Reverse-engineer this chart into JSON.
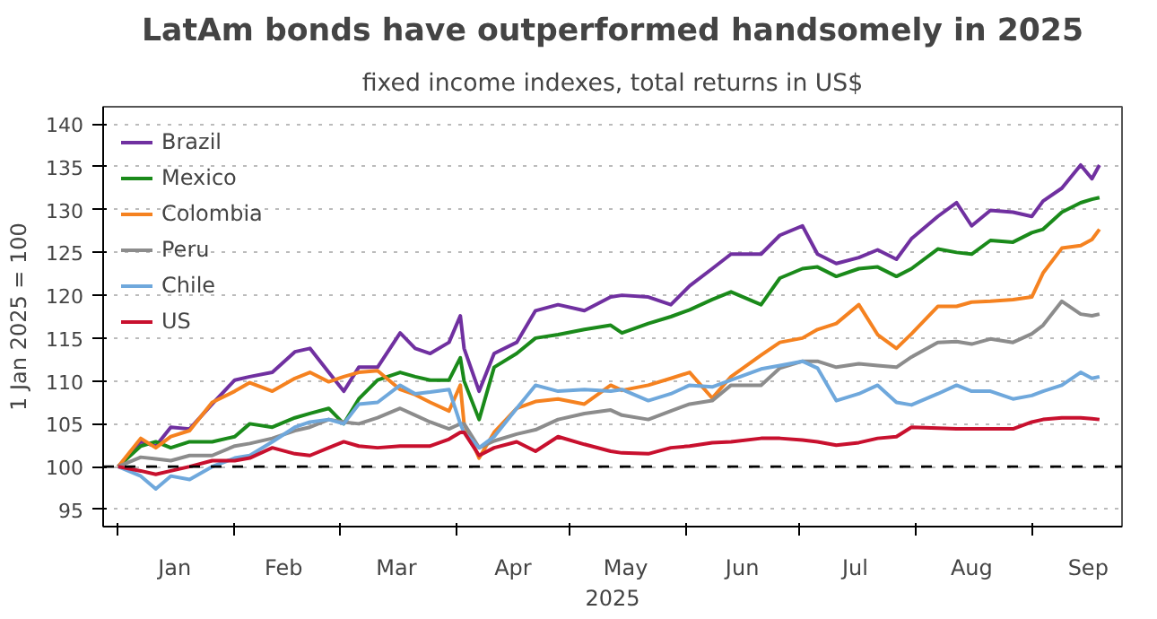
{
  "chart_data": {
    "type": "line",
    "title": "LatAm bonds have outperformed handsomely in 2025",
    "subtitle": "fixed income indexes, total returns in US$",
    "xlabel": "2025",
    "ylabel": "1 Jan 2025 = 100",
    "x": [
      "2025-01-01",
      "2025-01-07",
      "2025-01-11",
      "2025-01-15",
      "2025-01-20",
      "2025-01-26",
      "2025-02-01",
      "2025-02-05",
      "2025-02-11",
      "2025-02-17",
      "2025-02-21",
      "2025-02-26",
      "2025-03-02",
      "2025-03-06",
      "2025-03-11",
      "2025-03-17",
      "2025-03-21",
      "2025-03-25",
      "2025-03-30",
      "2025-04-02",
      "2025-04-03",
      "2025-04-07",
      "2025-04-11",
      "2025-04-17",
      "2025-04-22",
      "2025-04-28",
      "2025-05-05",
      "2025-05-12",
      "2025-05-15",
      "2025-05-22",
      "2025-05-28",
      "2025-06-02",
      "2025-06-08",
      "2025-06-13",
      "2025-06-21",
      "2025-06-26",
      "2025-07-02",
      "2025-07-06",
      "2025-07-11",
      "2025-07-17",
      "2025-07-22",
      "2025-07-27",
      "2025-07-31",
      "2025-08-07",
      "2025-08-12",
      "2025-08-16",
      "2025-08-21",
      "2025-08-27",
      "2025-09-01",
      "2025-09-04",
      "2025-09-09",
      "2025-09-14",
      "2025-09-17",
      "2025-09-19"
    ],
    "series": [
      {
        "name": "Brazil",
        "color": "#7030a0",
        "values": [
          100,
          102.9,
          102.4,
          104.6,
          104.4,
          107.3,
          110.1,
          110.5,
          111,
          113.4,
          113.8,
          111,
          108.8,
          111.6,
          111.6,
          115.6,
          113.8,
          113.2,
          114.5,
          117.6,
          113.8,
          108.8,
          113.2,
          114.5,
          118.2,
          118.9,
          118.2,
          119.8,
          120,
          119.8,
          118.9,
          121.1,
          123.1,
          124.8,
          124.8,
          127,
          128.1,
          124.8,
          123.7,
          124.4,
          125.3,
          124.2,
          126.6,
          129.2,
          130.8,
          128.1,
          129.9,
          129.7,
          129.2,
          131,
          132.5,
          135.2,
          133.6,
          135.2
        ]
      },
      {
        "name": "Mexico",
        "color": "#1a8a1a",
        "values": [
          100,
          102.4,
          102.9,
          102.2,
          102.9,
          102.9,
          103.5,
          105,
          104.6,
          105.7,
          106.2,
          106.8,
          105,
          107.9,
          110.1,
          111,
          110.5,
          110.1,
          110.1,
          112.7,
          110,
          105.5,
          111.6,
          113.2,
          115,
          115.4,
          116,
          116.5,
          115.6,
          116.7,
          117.5,
          118.3,
          119.5,
          120.4,
          118.9,
          122,
          123.1,
          123.3,
          122.2,
          123.1,
          123.3,
          122.2,
          123.1,
          125.4,
          125,
          124.8,
          126.4,
          126.2,
          127.3,
          127.7,
          129.7,
          130.8,
          131.2,
          131.4
        ]
      },
      {
        "name": "Colombia",
        "color": "#f58220",
        "values": [
          100,
          103.3,
          102.2,
          103.5,
          104.2,
          107.5,
          108.8,
          109.8,
          108.8,
          110.3,
          111,
          109.9,
          110.5,
          111,
          111.2,
          109,
          108.4,
          107.5,
          106.5,
          109.5,
          105,
          101,
          104,
          106.8,
          107.6,
          107.9,
          107.3,
          109.5,
          108.9,
          109.5,
          110.3,
          111,
          108,
          110.5,
          113,
          114.5,
          115,
          116,
          116.7,
          118.9,
          115.4,
          113.8,
          115.5,
          118.7,
          118.7,
          119.2,
          119.3,
          119.5,
          119.8,
          122.6,
          125.5,
          125.8,
          126.5,
          127.7
        ]
      },
      {
        "name": "Peru",
        "color": "#8c8c8c",
        "values": [
          100,
          101.1,
          100.9,
          100.7,
          101.3,
          101.3,
          102.4,
          102.7,
          103.3,
          104.2,
          104.6,
          105.5,
          105.2,
          105,
          105.7,
          106.8,
          106,
          105.2,
          104.4,
          105,
          105,
          102.2,
          103,
          103.8,
          104.3,
          105.5,
          106.2,
          106.6,
          106,
          105.5,
          106.5,
          107.3,
          107.7,
          109.5,
          109.5,
          111.5,
          112.3,
          112.3,
          111.6,
          112,
          111.8,
          111.6,
          112.8,
          114.5,
          114.6,
          114.3,
          114.9,
          114.5,
          115.5,
          116.5,
          119.3,
          117.8,
          117.6,
          117.8
        ]
      },
      {
        "name": "Chile",
        "color": "#6fa8dc",
        "values": [
          100,
          98.9,
          97.4,
          98.9,
          98.5,
          100,
          101,
          101.3,
          102.9,
          104.6,
          105.2,
          105.5,
          105,
          107.3,
          107.5,
          109.5,
          108.5,
          108.7,
          109,
          105,
          104,
          102.2,
          103.5,
          106.8,
          109.5,
          108.8,
          109,
          108.8,
          109,
          107.7,
          108.5,
          109.5,
          109.3,
          110.1,
          111.4,
          111.8,
          112.3,
          111.5,
          107.7,
          108.5,
          109.5,
          107.5,
          107.2,
          108.5,
          109.5,
          108.8,
          108.8,
          107.9,
          108.3,
          108.8,
          109.5,
          111,
          110.3,
          110.5
        ]
      },
      {
        "name": "US",
        "color": "#c8102e",
        "values": [
          100,
          99.5,
          99.1,
          99.5,
          100,
          100.7,
          100.7,
          101,
          102.2,
          101.5,
          101.3,
          102.2,
          102.9,
          102.4,
          102.2,
          102.4,
          102.4,
          102.4,
          103.2,
          104,
          104,
          101.3,
          102.2,
          102.9,
          101.8,
          103.5,
          102.6,
          101.8,
          101.6,
          101.5,
          102.2,
          102.4,
          102.8,
          102.9,
          103.3,
          103.3,
          103.1,
          102.9,
          102.5,
          102.8,
          103.3,
          103.5,
          104.6,
          104.5,
          104.4,
          104.4,
          104.4,
          104.4,
          105.2,
          105.5,
          105.7,
          105.7,
          105.6,
          105.5
        ]
      }
    ],
    "xlim": [
      "2024-12-28",
      "2025-09-25"
    ],
    "xticks": [
      {
        "value": "2025-01-01",
        "label": null
      },
      {
        "value": "2025-01-16",
        "label": "Jan"
      },
      {
        "value": "2025-02-01",
        "label": null
      },
      {
        "value": "2025-02-14",
        "label": "Feb"
      },
      {
        "value": "2025-03-01",
        "label": null
      },
      {
        "value": "2025-03-16",
        "label": "Mar"
      },
      {
        "value": "2025-04-01",
        "label": null
      },
      {
        "value": "2025-04-16",
        "label": "Apr"
      },
      {
        "value": "2025-05-01",
        "label": null
      },
      {
        "value": "2025-05-16",
        "label": "May"
      },
      {
        "value": "2025-06-01",
        "label": null
      },
      {
        "value": "2025-06-16",
        "label": "Jun"
      },
      {
        "value": "2025-07-01",
        "label": null
      },
      {
        "value": "2025-07-16",
        "label": "Jul"
      },
      {
        "value": "2025-08-01",
        "label": null
      },
      {
        "value": "2025-08-16",
        "label": "Aug"
      },
      {
        "value": "2025-09-01",
        "label": null
      },
      {
        "value": "2025-09-16",
        "label": "Sep"
      }
    ],
    "ylim": [
      93,
      142
    ],
    "yticks": [
      95,
      100,
      105,
      110,
      115,
      120,
      125,
      130,
      135,
      140
    ],
    "ref_lines": [
      {
        "axis": "y",
        "value": 100,
        "label": null,
        "color": "#000000",
        "line_style": "dashed"
      }
    ],
    "grid": "y",
    "legend": "top left",
    "line_style": "solid",
    "marker": "none"
  }
}
